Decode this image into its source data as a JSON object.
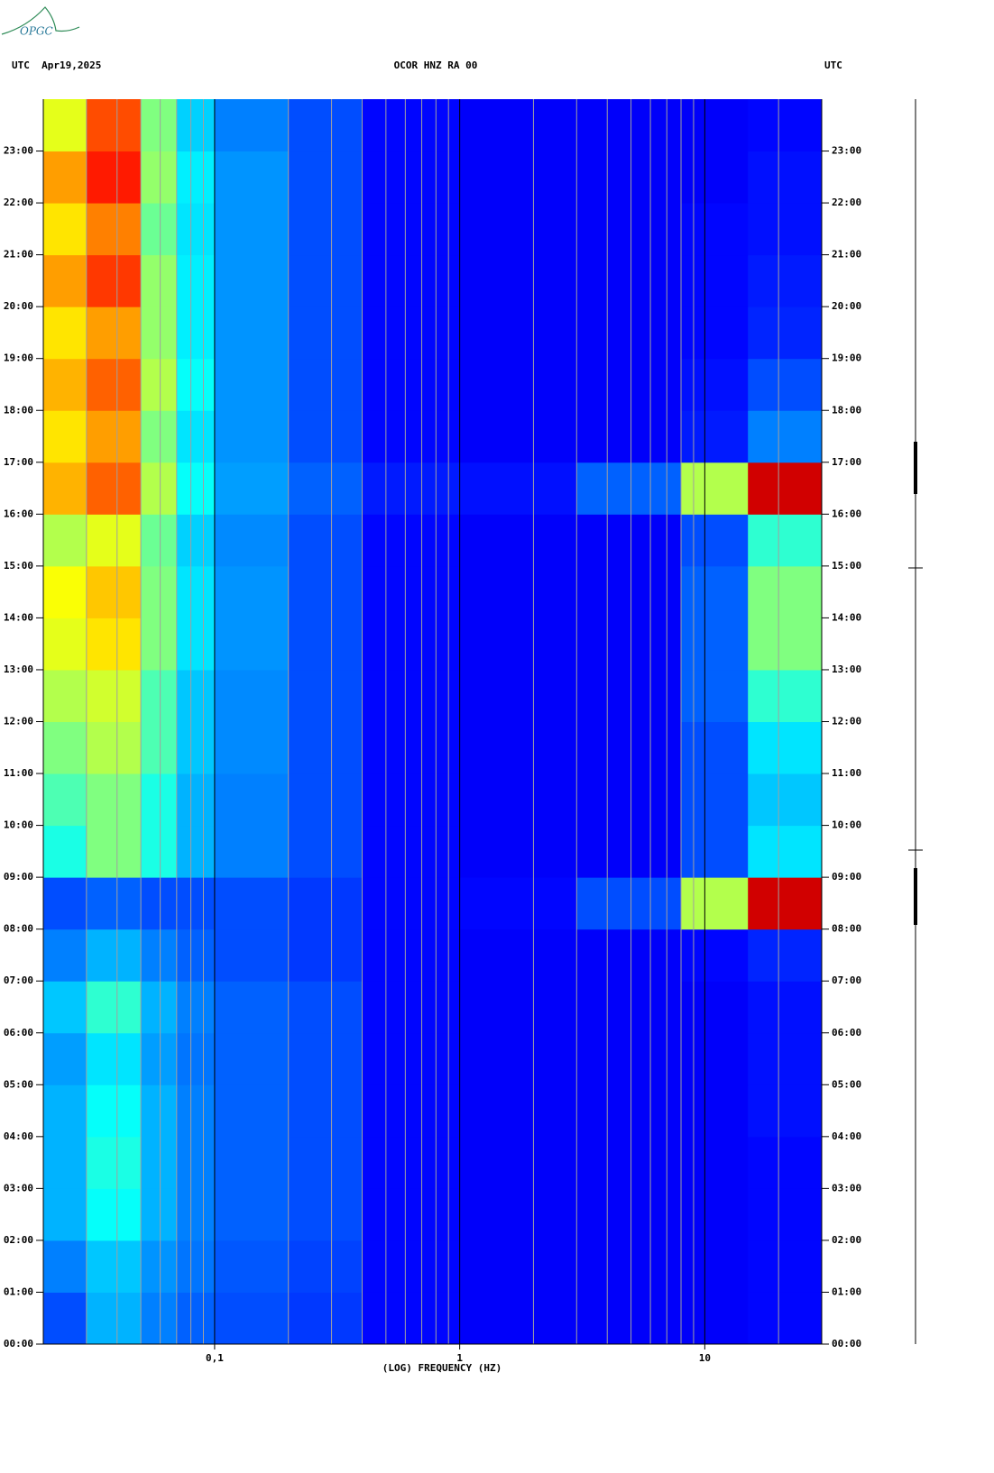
{
  "chart_data": {
    "type": "spectrogram",
    "logo": "OPGC",
    "header_left": "UTC  Apr19,2025",
    "title": "OCOR HNZ RA 00",
    "header_right": "UTC",
    "xlabel": "(LOG) FREQUENCY (HZ)",
    "xscale": "log",
    "xlim": [
      0.02,
      30
    ],
    "xticks": [
      {
        "value": 0.1,
        "label": "0,1"
      },
      1,
      10
    ],
    "xgrid": [
      0.03,
      0.04,
      0.05,
      0.06,
      0.07,
      0.08,
      0.09,
      0.2,
      0.3,
      0.4,
      0.5,
      0.6,
      0.7,
      0.8,
      0.9,
      2,
      3,
      4,
      5,
      6,
      7,
      8,
      9,
      20
    ],
    "ylim": [
      0,
      24
    ],
    "yticks": [
      {
        "value": 0,
        "label": "00:00"
      },
      {
        "value": 1,
        "label": "01:00"
      },
      {
        "value": 2,
        "label": "02:00"
      },
      {
        "value": 3,
        "label": "03:00"
      },
      {
        "value": 4,
        "label": "04:00"
      },
      {
        "value": 5,
        "label": "05:00"
      },
      {
        "value": 6,
        "label": "06:00"
      },
      {
        "value": 7,
        "label": "07:00"
      },
      {
        "value": 8,
        "label": "08:00"
      },
      {
        "value": 9,
        "label": "09:00"
      },
      {
        "value": 10,
        "label": "10:00"
      },
      {
        "value": 11,
        "label": "11:00"
      },
      {
        "value": 12,
        "label": "12:00"
      },
      {
        "value": 13,
        "label": "13:00"
      },
      {
        "value": 14,
        "label": "14:00"
      },
      {
        "value": 15,
        "label": "15:00"
      },
      {
        "value": 16,
        "label": "16:00"
      },
      {
        "value": 17,
        "label": "17:00"
      },
      {
        "value": 18,
        "label": "18:00"
      },
      {
        "value": 19,
        "label": "19:00"
      },
      {
        "value": 20,
        "label": "20:00"
      },
      {
        "value": 21,
        "label": "21:00"
      },
      {
        "value": 22,
        "label": "22:00"
      },
      {
        "value": 23,
        "label": "23:00"
      }
    ],
    "freq_edges": [
      0.02,
      0.03,
      0.05,
      0.07,
      0.1,
      0.2,
      0.4,
      1,
      3,
      8,
      15,
      30
    ],
    "intensity": [
      [
        0.2,
        0.3,
        0.25,
        0.22,
        0.2,
        0.18,
        0.13,
        0.12,
        0.12,
        0.12,
        0.13
      ],
      [
        0.25,
        0.32,
        0.27,
        0.24,
        0.21,
        0.19,
        0.13,
        0.12,
        0.12,
        0.12,
        0.13
      ],
      [
        0.3,
        0.38,
        0.3,
        0.25,
        0.22,
        0.2,
        0.13,
        0.12,
        0.12,
        0.12,
        0.13
      ],
      [
        0.3,
        0.4,
        0.3,
        0.25,
        0.22,
        0.2,
        0.13,
        0.12,
        0.12,
        0.12,
        0.13
      ],
      [
        0.3,
        0.38,
        0.3,
        0.25,
        0.22,
        0.2,
        0.13,
        0.12,
        0.12,
        0.12,
        0.14
      ],
      [
        0.28,
        0.35,
        0.28,
        0.24,
        0.22,
        0.2,
        0.13,
        0.12,
        0.12,
        0.12,
        0.14
      ],
      [
        0.32,
        0.42,
        0.3,
        0.25,
        0.22,
        0.2,
        0.13,
        0.12,
        0.12,
        0.12,
        0.14
      ],
      [
        0.25,
        0.3,
        0.25,
        0.22,
        0.2,
        0.18,
        0.13,
        0.12,
        0.12,
        0.13,
        0.16
      ],
      [
        0.2,
        0.22,
        0.2,
        0.2,
        0.2,
        0.18,
        0.13,
        0.13,
        0.2,
        0.55,
        0.92
      ],
      [
        0.4,
        0.5,
        0.4,
        0.3,
        0.25,
        0.2,
        0.13,
        0.12,
        0.12,
        0.2,
        0.35
      ],
      [
        0.45,
        0.5,
        0.4,
        0.3,
        0.25,
        0.2,
        0.13,
        0.12,
        0.12,
        0.2,
        0.32
      ],
      [
        0.5,
        0.55,
        0.45,
        0.32,
        0.26,
        0.2,
        0.13,
        0.12,
        0.12,
        0.2,
        0.35
      ],
      [
        0.55,
        0.58,
        0.45,
        0.32,
        0.26,
        0.2,
        0.13,
        0.12,
        0.12,
        0.22,
        0.42
      ],
      [
        0.6,
        0.65,
        0.5,
        0.35,
        0.27,
        0.2,
        0.13,
        0.12,
        0.12,
        0.22,
        0.5
      ],
      [
        0.62,
        0.68,
        0.5,
        0.35,
        0.27,
        0.2,
        0.13,
        0.12,
        0.12,
        0.22,
        0.5
      ],
      [
        0.55,
        0.6,
        0.48,
        0.33,
        0.26,
        0.2,
        0.13,
        0.12,
        0.12,
        0.2,
        0.42
      ],
      [
        0.7,
        0.78,
        0.55,
        0.38,
        0.28,
        0.22,
        0.15,
        0.14,
        0.22,
        0.55,
        0.92
      ],
      [
        0.65,
        0.72,
        0.5,
        0.35,
        0.27,
        0.2,
        0.13,
        0.12,
        0.12,
        0.15,
        0.25
      ],
      [
        0.7,
        0.78,
        0.55,
        0.38,
        0.27,
        0.2,
        0.13,
        0.12,
        0.12,
        0.14,
        0.2
      ],
      [
        0.65,
        0.72,
        0.52,
        0.36,
        0.27,
        0.2,
        0.13,
        0.12,
        0.12,
        0.13,
        0.16
      ],
      [
        0.72,
        0.82,
        0.52,
        0.36,
        0.27,
        0.2,
        0.13,
        0.12,
        0.12,
        0.13,
        0.15
      ],
      [
        0.65,
        0.75,
        0.48,
        0.35,
        0.27,
        0.2,
        0.13,
        0.12,
        0.12,
        0.13,
        0.14
      ],
      [
        0.72,
        0.85,
        0.52,
        0.36,
        0.27,
        0.2,
        0.13,
        0.12,
        0.12,
        0.12,
        0.14
      ],
      [
        0.6,
        0.8,
        0.5,
        0.33,
        0.25,
        0.2,
        0.13,
        0.12,
        0.12,
        0.12,
        0.13
      ]
    ]
  }
}
